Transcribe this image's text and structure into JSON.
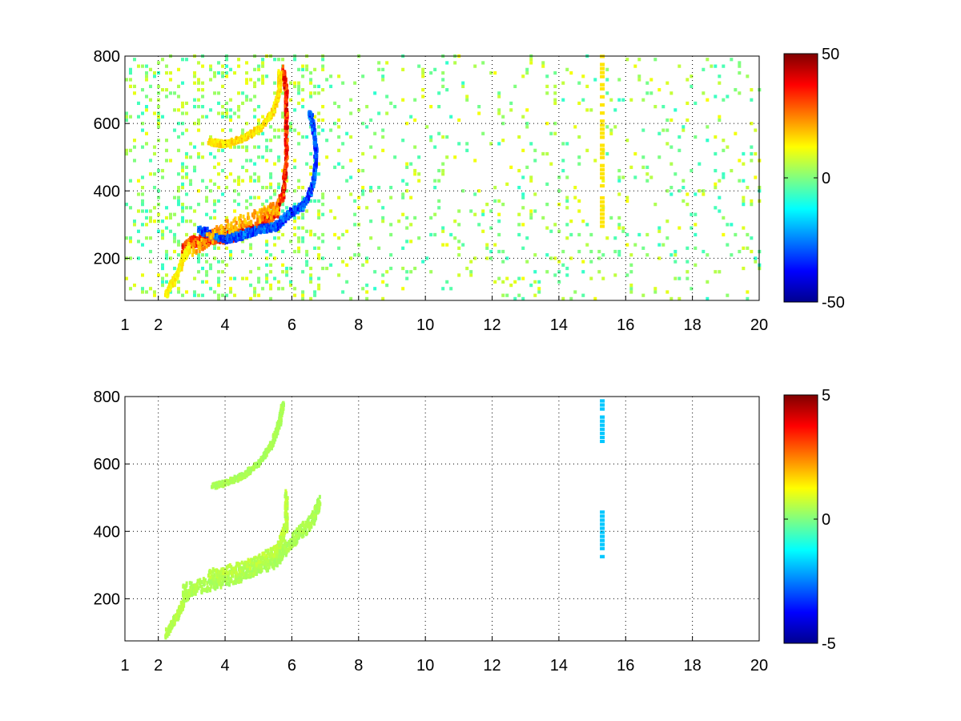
{
  "chart_data": [
    {
      "type": "heatmap",
      "panel": "top",
      "title": "",
      "xlabel": "",
      "ylabel": "",
      "xlim": [
        1,
        20
      ],
      "ylim": [
        75,
        800
      ],
      "x_ticks": [
        {
          "value": 1,
          "label": "1"
        },
        {
          "value": 2,
          "label": "2"
        },
        {
          "value": 4,
          "label": "4"
        },
        {
          "value": 6,
          "label": "6"
        },
        {
          "value": 8,
          "label": "8"
        },
        {
          "value": 10,
          "label": "10"
        },
        {
          "value": 12,
          "label": "12"
        },
        {
          "value": 14,
          "label": "14"
        },
        {
          "value": 16,
          "label": "16"
        },
        {
          "value": 18,
          "label": "18"
        },
        {
          "value": 20,
          "label": "20"
        }
      ],
      "y_ticks": [
        {
          "value": 200,
          "label": "200"
        },
        {
          "value": 400,
          "label": "400"
        },
        {
          "value": 600,
          "label": "600"
        },
        {
          "value": 800,
          "label": "800"
        }
      ],
      "grid": true,
      "colormap": "jet",
      "color_range": [
        -50,
        50
      ],
      "colorbar_ticks": [
        {
          "value": 50,
          "label": "50"
        },
        {
          "value": 0,
          "label": "0"
        },
        {
          "value": -50,
          "label": "-50"
        }
      ],
      "features": [
        {
          "name": "",
          "points": [
            [
              2.7,
              230
            ],
            [
              3.0,
              255
            ],
            [
              3.5,
              265
            ],
            [
              4.0,
              268
            ],
            [
              4.5,
              280
            ],
            [
              5.0,
              300
            ],
            [
              5.5,
              340
            ],
            [
              5.7,
              400
            ],
            [
              5.8,
              500
            ],
            [
              5.8,
              600
            ],
            [
              5.8,
              700
            ],
            [
              5.7,
              770
            ]
          ],
          "value": 40,
          "width": 30
        },
        {
          "name": "",
          "points": [
            [
              3.2,
              290
            ],
            [
              4.0,
              262
            ],
            [
              4.5,
              275
            ],
            [
              5.0,
              290
            ],
            [
              5.5,
              300
            ],
            [
              5.9,
              340
            ],
            [
              6.3,
              360
            ],
            [
              6.6,
              420
            ],
            [
              6.7,
              520
            ],
            [
              6.6,
              600
            ],
            [
              6.5,
              640
            ]
          ],
          "value": -35,
          "width": 22
        },
        {
          "name": "",
          "points": [
            [
              3.0,
              230
            ],
            [
              4.0,
              300
            ],
            [
              5.0,
              330
            ],
            [
              5.6,
              360
            ]
          ],
          "value": 25,
          "width": 40
        },
        {
          "name": "",
          "points": [
            [
              2.2,
              100
            ],
            [
              2.5,
              150
            ],
            [
              2.7,
              200
            ],
            [
              2.9,
              240
            ]
          ],
          "value": 15,
          "width": 24
        },
        {
          "name": "",
          "points": [
            [
              3.5,
              550
            ],
            [
              4.0,
              545
            ],
            [
              4.5,
              560
            ],
            [
              5.0,
              590
            ],
            [
              5.4,
              640
            ],
            [
              5.6,
              700
            ],
            [
              5.6,
              760
            ]
          ],
          "value": 18,
          "width": 16
        }
      ],
      "stripes": [
        {
          "x": 15.3,
          "y_min": 290,
          "y_max": 800,
          "value": 15
        }
      ],
      "noise": {
        "x_range": [
          1,
          20
        ],
        "y_range": [
          75,
          800
        ],
        "value_range": [
          -8,
          12
        ]
      }
    },
    {
      "type": "heatmap",
      "panel": "bottom",
      "title": "",
      "xlabel": "",
      "ylabel": "",
      "xlim": [
        1,
        20
      ],
      "ylim": [
        75,
        800
      ],
      "x_ticks": [
        {
          "value": 1,
          "label": "1"
        },
        {
          "value": 2,
          "label": "2"
        },
        {
          "value": 4,
          "label": "4"
        },
        {
          "value": 6,
          "label": "6"
        },
        {
          "value": 8,
          "label": "8"
        },
        {
          "value": 10,
          "label": "10"
        },
        {
          "value": 12,
          "label": "12"
        },
        {
          "value": 14,
          "label": "14"
        },
        {
          "value": 16,
          "label": "16"
        },
        {
          "value": 18,
          "label": "18"
        },
        {
          "value": 20,
          "label": "20"
        }
      ],
      "y_ticks": [
        {
          "value": 200,
          "label": "200"
        },
        {
          "value": 400,
          "label": "400"
        },
        {
          "value": 600,
          "label": "600"
        },
        {
          "value": 800,
          "label": "800"
        }
      ],
      "grid": true,
      "colormap": "jet",
      "color_range": [
        -5,
        5
      ],
      "colorbar_ticks": [
        {
          "value": 5,
          "label": "5"
        },
        {
          "value": 0,
          "label": "0"
        },
        {
          "value": -5,
          "label": "-5"
        }
      ],
      "features": [
        {
          "name": "",
          "points": [
            [
              2.7,
              230
            ],
            [
              3.5,
              250
            ],
            [
              4.0,
              265
            ],
            [
              4.5,
              280
            ],
            [
              5.0,
              300
            ],
            [
              5.5,
              320
            ],
            [
              5.8,
              360
            ],
            [
              6.2,
              400
            ],
            [
              6.6,
              440
            ],
            [
              6.8,
              500
            ]
          ],
          "value": 0.5,
          "width": 40
        },
        {
          "name": "",
          "points": [
            [
              2.2,
              100
            ],
            [
              2.5,
              150
            ],
            [
              2.8,
              210
            ],
            [
              3.1,
              240
            ]
          ],
          "value": 0.6,
          "width": 20
        },
        {
          "name": "",
          "points": [
            [
              3.6,
              540
            ],
            [
              4.0,
              550
            ],
            [
              4.5,
              570
            ],
            [
              5.0,
              610
            ],
            [
              5.4,
              670
            ],
            [
              5.6,
              730
            ],
            [
              5.7,
              790
            ]
          ],
          "value": 0.5,
          "width": 14
        },
        {
          "name": "",
          "points": [
            [
              3.5,
              280
            ],
            [
              4.5,
              300
            ],
            [
              5.5,
              350
            ],
            [
              5.8,
              420
            ],
            [
              5.8,
              520
            ]
          ],
          "value": 0.7,
          "width": 28
        }
      ],
      "stripes": [
        {
          "x": 15.3,
          "y_min": 650,
          "y_max": 790,
          "value": -1.8
        },
        {
          "x": 15.3,
          "y_min": 320,
          "y_max": 470,
          "value": -1.8
        }
      ],
      "noise": {
        "x_range": [
          1,
          20
        ],
        "y_range": [
          75,
          800
        ],
        "value_range": [
          0,
          0
        ]
      }
    }
  ]
}
